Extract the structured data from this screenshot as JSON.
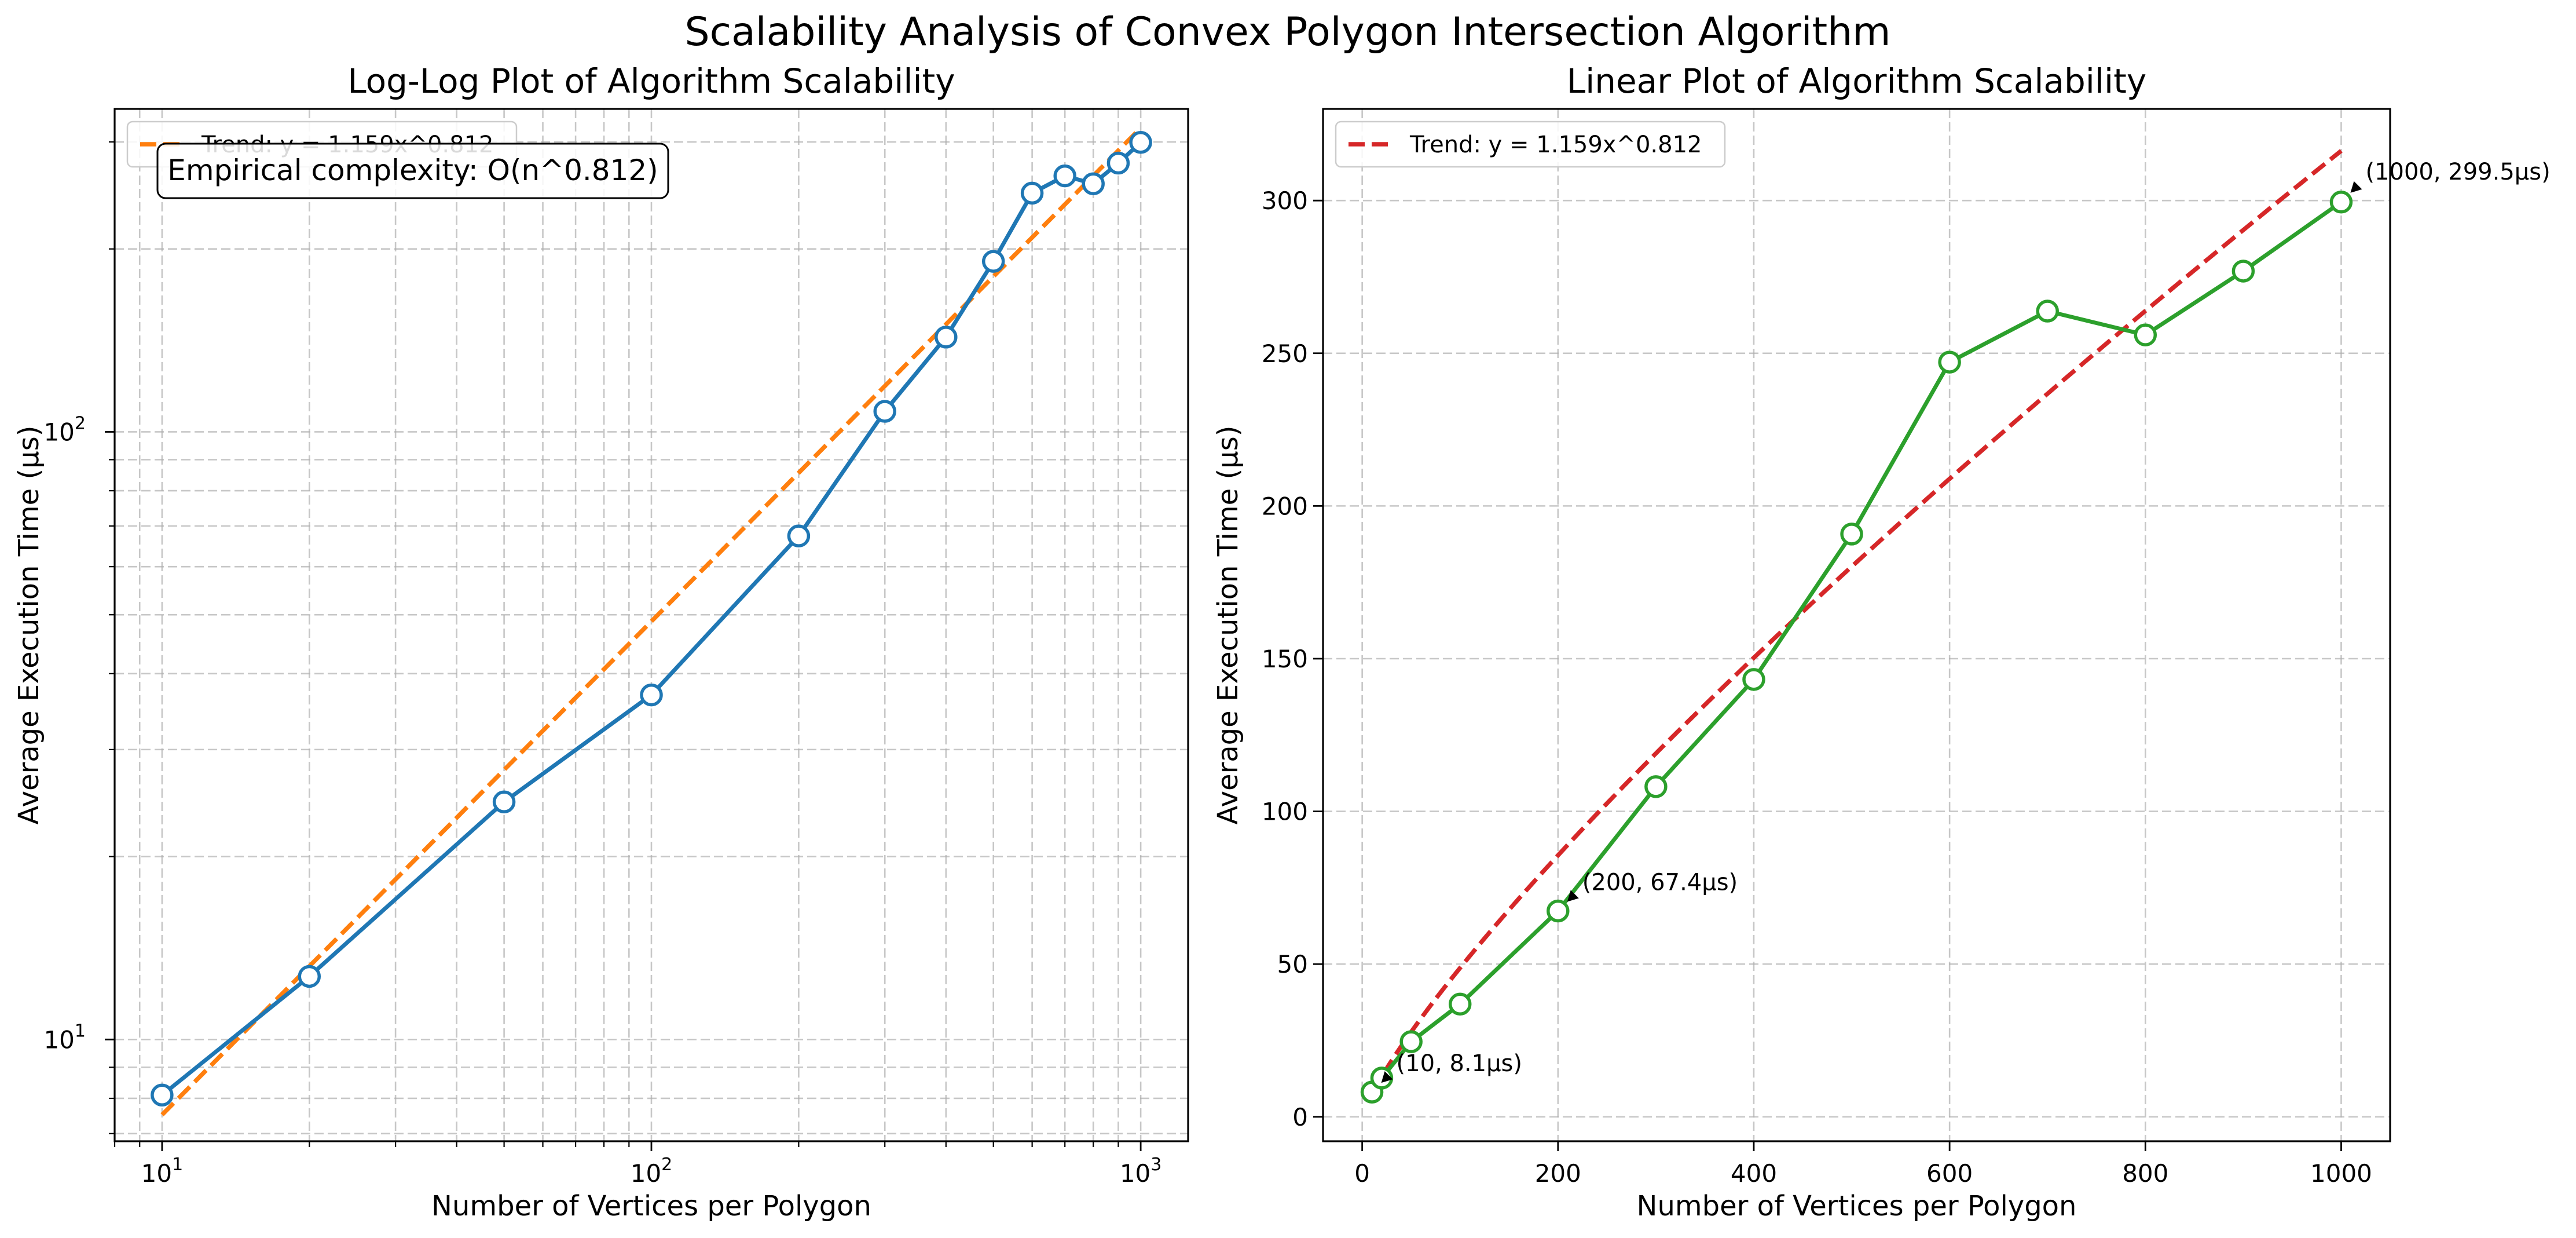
{
  "figure": {
    "suptitle": "Scalability Analysis of Convex Polygon Intersection Algorithm"
  },
  "chart_data": [
    {
      "type": "line",
      "scale": "log-log",
      "title": "Log-Log Plot of Algorithm Scalability",
      "xlabel": "Number of Vertices per Polygon",
      "ylabel": "Average Execution Time (µs)",
      "xlim": [
        8,
        1250
      ],
      "ylim": [
        6.8,
        340
      ],
      "xticks": [
        {
          "value": 10,
          "label": "10",
          "exp": "1"
        },
        {
          "value": 100,
          "label": "10",
          "exp": "2"
        },
        {
          "value": 1000,
          "label": "10",
          "exp": "3"
        }
      ],
      "yticks": [
        {
          "value": 10,
          "label": "10",
          "exp": "1"
        },
        {
          "value": 100,
          "label": "10",
          "exp": "2"
        }
      ],
      "grid": true,
      "series": [
        {
          "role": "data",
          "color": "#1f77b4",
          "marker": "circle-open",
          "x": [
            10,
            20,
            50,
            100,
            200,
            300,
            400,
            500,
            600,
            700,
            800,
            900,
            1000
          ],
          "y": [
            8.1,
            12.7,
            24.6,
            36.9,
            67.4,
            108.1,
            143.2,
            190.8,
            247.1,
            263.8,
            256.0,
            276.9,
            299.5
          ]
        },
        {
          "role": "trend",
          "name": "Trend: y = 1.159x^0.812",
          "color": "#ff7f0e",
          "style": "dashed",
          "coef": 1.159,
          "exponent": 0.812,
          "x_range": [
            10,
            1000
          ]
        }
      ],
      "legend": {
        "placement": "upper-left",
        "entries": [
          "Trend: y = 1.159x^0.812"
        ]
      },
      "textbox": {
        "text": "Empirical complexity: O(n^0.812)",
        "placement": "upper-left"
      }
    },
    {
      "type": "line",
      "scale": "linear",
      "title": "Linear Plot of Algorithm Scalability",
      "xlabel": "Number of Vertices per Polygon",
      "ylabel": "Average Execution Time (µs)",
      "xlim": [
        -40,
        1050
      ],
      "ylim": [
        -8,
        330
      ],
      "xticks": [
        {
          "value": 0,
          "label": "0"
        },
        {
          "value": 200,
          "label": "200"
        },
        {
          "value": 400,
          "label": "400"
        },
        {
          "value": 600,
          "label": "600"
        },
        {
          "value": 800,
          "label": "800"
        },
        {
          "value": 1000,
          "label": "1000"
        }
      ],
      "yticks": [
        {
          "value": 0,
          "label": "0"
        },
        {
          "value": 50,
          "label": "50"
        },
        {
          "value": 100,
          "label": "100"
        },
        {
          "value": 150,
          "label": "150"
        },
        {
          "value": 200,
          "label": "200"
        },
        {
          "value": 250,
          "label": "250"
        },
        {
          "value": 300,
          "label": "300"
        }
      ],
      "grid": true,
      "series": [
        {
          "role": "data",
          "color": "#2ca02c",
          "marker": "circle-open",
          "x": [
            10,
            20,
            50,
            100,
            200,
            300,
            400,
            500,
            600,
            700,
            800,
            900,
            1000
          ],
          "y": [
            8.1,
            12.7,
            24.6,
            36.9,
            67.4,
            108.1,
            143.2,
            190.8,
            247.1,
            263.8,
            256.0,
            276.9,
            299.5
          ]
        },
        {
          "role": "trend",
          "name": "Trend: y = 1.159x^0.812",
          "color": "#d62728",
          "style": "dashed",
          "coef": 1.159,
          "exponent": 0.812,
          "x_range": [
            10,
            1000
          ]
        }
      ],
      "legend": {
        "placement": "upper-left",
        "entries": [
          "Trend: y = 1.159x^0.812"
        ]
      },
      "annotations": [
        {
          "text": "(10, 8.1µs)",
          "x": 10,
          "y": 8.1
        },
        {
          "text": "(200, 67.4µs)",
          "x": 200,
          "y": 67.4
        },
        {
          "text": "(1000, 299.5µs)",
          "x": 1000,
          "y": 299.5
        }
      ]
    }
  ]
}
